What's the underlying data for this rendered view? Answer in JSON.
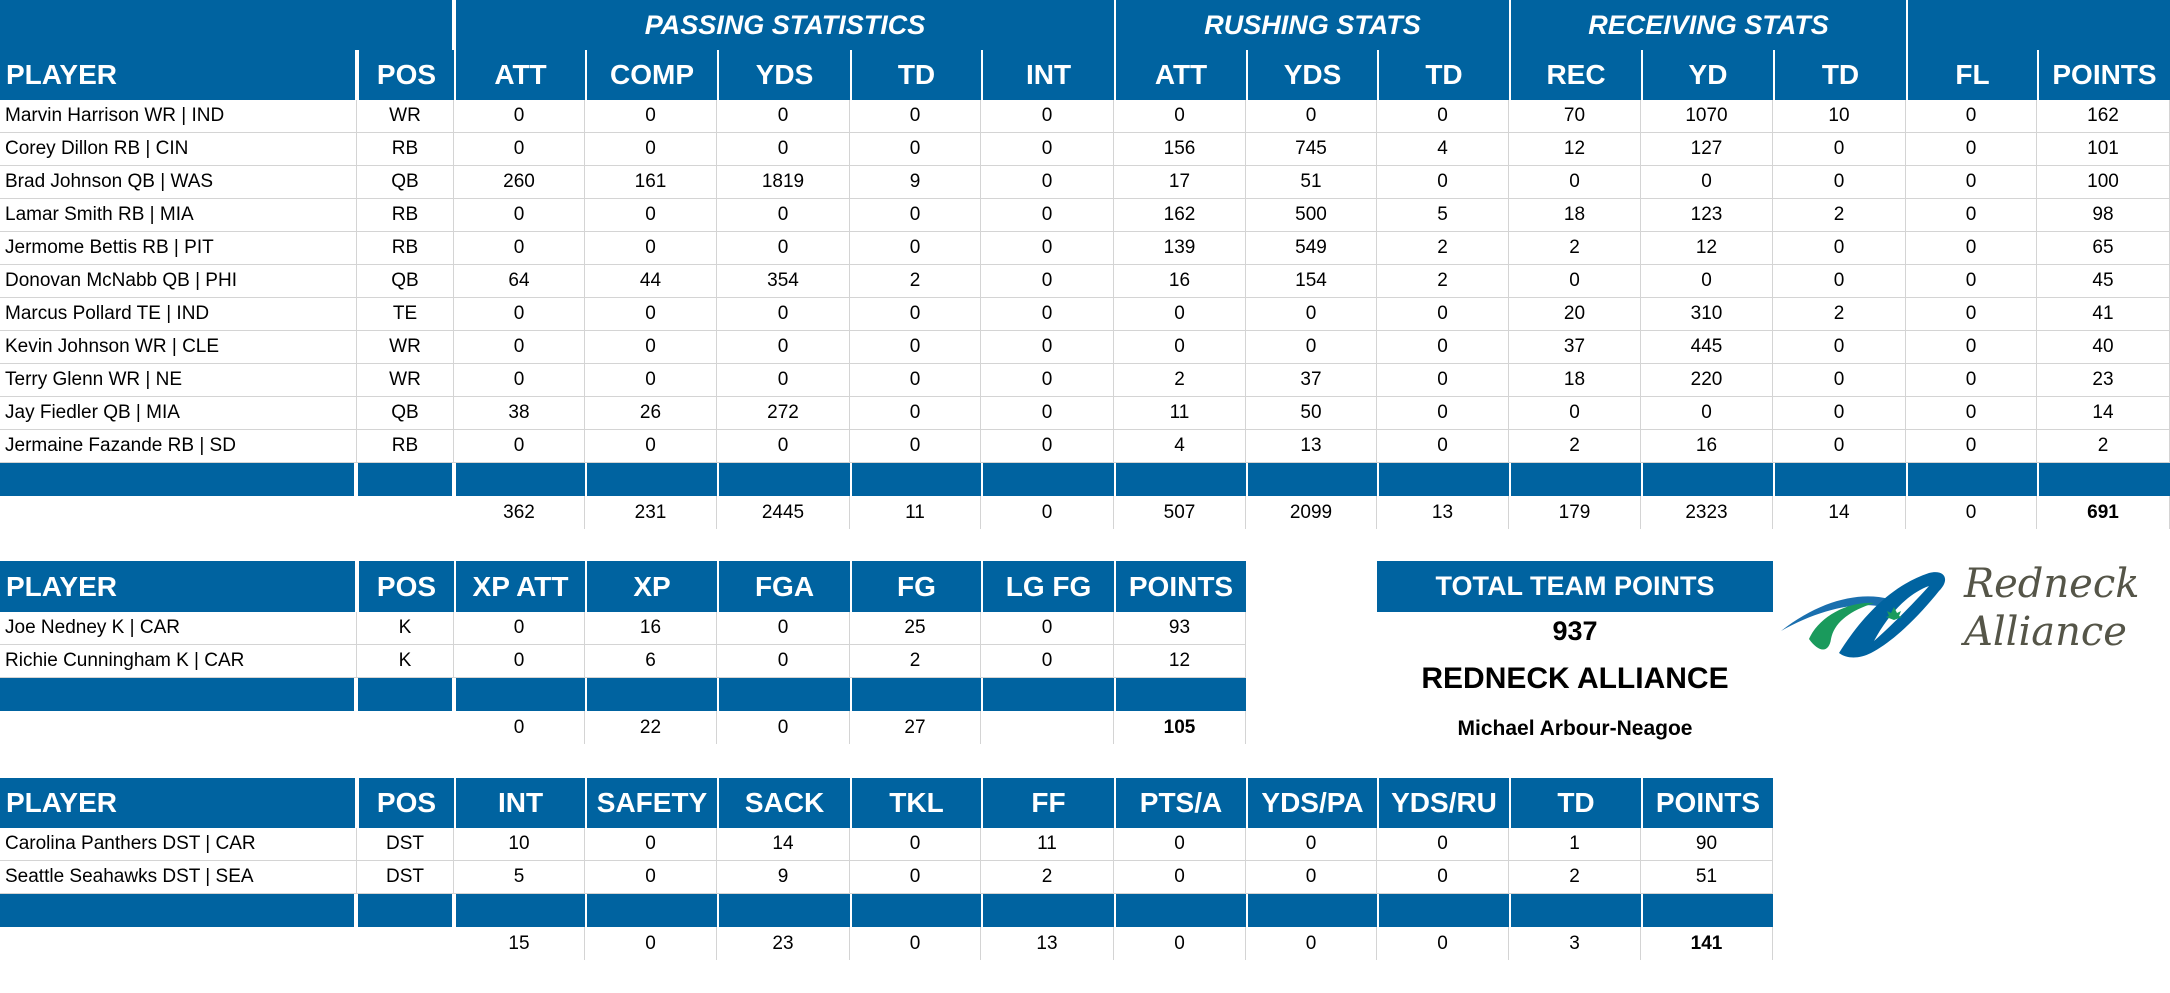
{
  "offense": {
    "group_headers": [
      {
        "label": "PASSING STATISTICS",
        "span": [
          2,
          7
        ]
      },
      {
        "label": "RUSHING STATS",
        "span": [
          7,
          10
        ]
      },
      {
        "label": "RECEIVING STATS",
        "span": [
          10,
          13
        ]
      }
    ],
    "columns": [
      "PLAYER",
      "POS",
      "ATT",
      "COMP",
      "YDS",
      "TD",
      "INT",
      "ATT",
      "YDS",
      "TD",
      "REC",
      "YD",
      "TD",
      "FL",
      "POINTS"
    ],
    "rows": [
      [
        "Marvin Harrison WR | IND",
        "WR",
        "0",
        "0",
        "0",
        "0",
        "0",
        "0",
        "0",
        "0",
        "70",
        "1070",
        "10",
        "0",
        "162"
      ],
      [
        "Corey Dillon RB | CIN",
        "RB",
        "0",
        "0",
        "0",
        "0",
        "0",
        "156",
        "745",
        "4",
        "12",
        "127",
        "0",
        "0",
        "101"
      ],
      [
        "Brad Johnson QB | WAS",
        "QB",
        "260",
        "161",
        "1819",
        "9",
        "0",
        "17",
        "51",
        "0",
        "0",
        "0",
        "0",
        "0",
        "100"
      ],
      [
        "Lamar Smith RB | MIA",
        "RB",
        "0",
        "0",
        "0",
        "0",
        "0",
        "162",
        "500",
        "5",
        "18",
        "123",
        "2",
        "0",
        "98"
      ],
      [
        "Jermome Bettis RB | PIT",
        "RB",
        "0",
        "0",
        "0",
        "0",
        "0",
        "139",
        "549",
        "2",
        "2",
        "12",
        "0",
        "0",
        "65"
      ],
      [
        "Donovan McNabb QB | PHI",
        "QB",
        "64",
        "44",
        "354",
        "2",
        "0",
        "16",
        "154",
        "2",
        "0",
        "0",
        "0",
        "0",
        "45"
      ],
      [
        "Marcus Pollard TE | IND",
        "TE",
        "0",
        "0",
        "0",
        "0",
        "0",
        "0",
        "0",
        "0",
        "20",
        "310",
        "2",
        "0",
        "41"
      ],
      [
        "Kevin Johnson WR | CLE",
        "WR",
        "0",
        "0",
        "0",
        "0",
        "0",
        "0",
        "0",
        "0",
        "37",
        "445",
        "0",
        "0",
        "40"
      ],
      [
        "Terry Glenn WR | NE",
        "WR",
        "0",
        "0",
        "0",
        "0",
        "0",
        "2",
        "37",
        "0",
        "18",
        "220",
        "0",
        "0",
        "23"
      ],
      [
        "Jay Fiedler QB | MIA",
        "QB",
        "38",
        "26",
        "272",
        "0",
        "0",
        "11",
        "50",
        "0",
        "0",
        "0",
        "0",
        "0",
        "14"
      ],
      [
        "Jermaine Fazande RB | SD",
        "RB",
        "0",
        "0",
        "0",
        "0",
        "0",
        "4",
        "13",
        "0",
        "2",
        "16",
        "0",
        "0",
        "2"
      ]
    ],
    "totals": [
      "",
      "",
      "362",
      "231",
      "2445",
      "11",
      "0",
      "507",
      "2099",
      "13",
      "179",
      "2323",
      "14",
      "0",
      "691"
    ]
  },
  "kickers": {
    "columns": [
      "PLAYER",
      "POS",
      "XP ATT",
      "XP",
      "FGA",
      "FG",
      "LG FG",
      "POINTS"
    ],
    "rows": [
      [
        "Joe Nedney K | CAR",
        "K",
        "0",
        "16",
        "0",
        "25",
        "0",
        "93"
      ],
      [
        "Richie Cunningham K | CAR",
        "K",
        "0",
        "6",
        "0",
        "2",
        "0",
        "12"
      ]
    ],
    "totals": [
      "",
      "",
      "0",
      "22",
      "0",
      "27",
      "",
      "105"
    ]
  },
  "defense": {
    "columns": [
      "PLAYER",
      "POS",
      "INT",
      "SAFETY",
      "SACK",
      "TKL",
      "FF",
      "PTS/A",
      "YDS/PA",
      "YDS/RU",
      "TD",
      "POINTS"
    ],
    "rows": [
      [
        "Carolina Panthers DST | CAR",
        "DST",
        "10",
        "0",
        "14",
        "0",
        "11",
        "0",
        "0",
        "0",
        "1",
        "90"
      ],
      [
        "Seattle Seahawks DST | SEA",
        "DST",
        "5",
        "0",
        "9",
        "0",
        "2",
        "0",
        "0",
        "0",
        "2",
        "51"
      ]
    ],
    "totals": [
      "",
      "",
      "15",
      "0",
      "23",
      "0",
      "13",
      "0",
      "0",
      "0",
      "3",
      "141"
    ]
  },
  "summary": {
    "total_label": "TOTAL TEAM POINTS",
    "total_value": "937",
    "team_name": "REDNECK ALLIANCE",
    "owner": "Michael Arbour-Neagoe"
  },
  "logo": {
    "line1": "Redneck",
    "line2": "Alliance",
    "icon": "swoosh-maple-leaf-icon",
    "colors": {
      "blue": "#0063a0",
      "green": "#1a9a5c",
      "leaf": "#1a9a5c",
      "text": "#555548"
    }
  },
  "colors": {
    "header_bg": "#0063a0",
    "header_text": "#ffffff",
    "grid": "#d4d4d4"
  }
}
